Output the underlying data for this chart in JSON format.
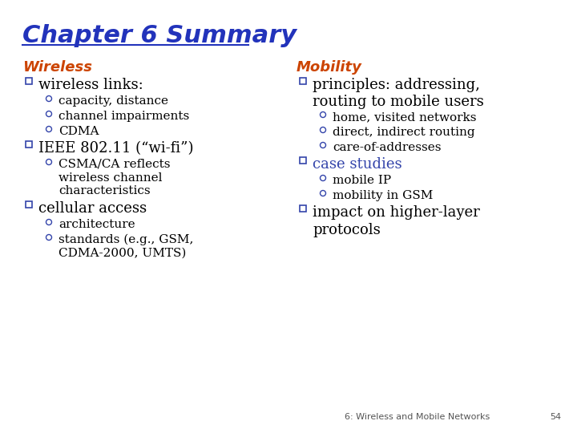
{
  "title": "Chapter 6 Summary",
  "title_color": "#2233BB",
  "title_fontsize": 22,
  "bg_color": "#FFFFFF",
  "left_header": "Wireless",
  "right_header": "Mobility",
  "header_color": "#CC4400",
  "header_fontsize": 13,
  "bullet_color": "#3344AA",
  "bullet_l1_fontsize": 13,
  "bullet_l2_fontsize": 11,
  "sub_color": "#000000",
  "footer": "6: Wireless and Mobile Networks",
  "footer_page": "54",
  "footer_color": "#555555",
  "footer_fontsize": 8,
  "left_items": [
    {
      "level": 1,
      "text": "wireless links:"
    },
    {
      "level": 2,
      "text": "capacity, distance"
    },
    {
      "level": 2,
      "text": "channel impairments"
    },
    {
      "level": 2,
      "text": "CDMA"
    },
    {
      "level": 1,
      "text": "IEEE 802.11 (“wi-fi”)"
    },
    {
      "level": 2,
      "text": "CSMA/CA reflects\nwireless channel\ncharacteristics"
    },
    {
      "level": 1,
      "text": "cellular access"
    },
    {
      "level": 2,
      "text": "architecture"
    },
    {
      "level": 2,
      "text": "standards (e.g., GSM,\nCDMA-2000, UMTS)"
    }
  ],
  "right_items": [
    {
      "level": 1,
      "text": "principles: addressing,\nrouting to mobile users"
    },
    {
      "level": 2,
      "text": "home, visited networks"
    },
    {
      "level": 2,
      "text": "direct, indirect routing"
    },
    {
      "level": 2,
      "text": "care-of-addresses"
    },
    {
      "level": 1,
      "text": "case studies",
      "color": "#3344AA"
    },
    {
      "level": 2,
      "text": "mobile IP"
    },
    {
      "level": 2,
      "text": "mobility in GSM"
    },
    {
      "level": 1,
      "text": "impact on higher-layer\nprotocols"
    }
  ]
}
